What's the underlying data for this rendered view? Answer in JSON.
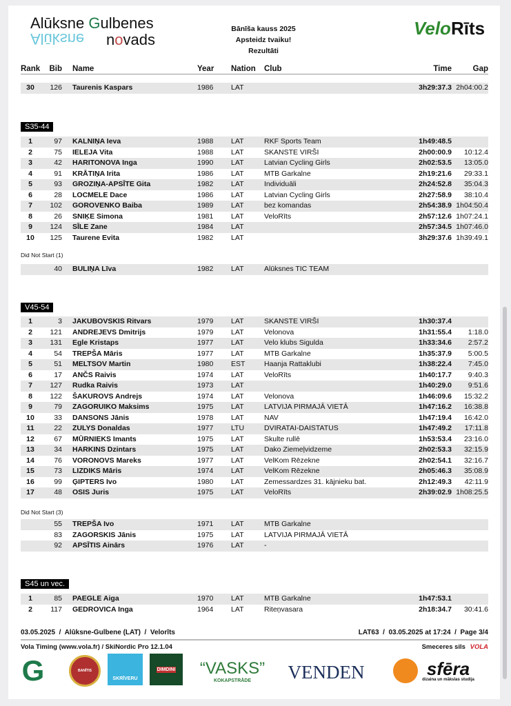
{
  "header": {
    "logo_left": "Alūksne Gulbenes novads",
    "logo_right": "VeloRīts",
    "title_lines": [
      "Bānīša kauss 2025",
      "Apsteidz tvaiku!",
      "Rezultāti"
    ]
  },
  "columns": {
    "rank": "Rank",
    "bib": "Bib",
    "name": "Name",
    "year": "Year",
    "nation": "Nation",
    "club": "Club",
    "time": "Time",
    "gap": "Gap"
  },
  "carryover": [
    {
      "rank": "30",
      "bib": "126",
      "name": "Taurenis Kaspars",
      "year": "1986",
      "nation": "LAT",
      "club": "",
      "time": "3h29:37.3",
      "gap": "2h04:00.2"
    }
  ],
  "categories": [
    {
      "label": "S35-44",
      "rows": [
        {
          "rank": "1",
          "bib": "97",
          "name": "KALNIŅA Ieva",
          "year": "1988",
          "nation": "LAT",
          "club": "RKF Sports Team",
          "time": "1h49:48.5",
          "gap": ""
        },
        {
          "rank": "2",
          "bib": "75",
          "name": "IELEJA Vita",
          "year": "1988",
          "nation": "LAT",
          "club": "SKANSTE VIRŠI",
          "time": "2h00:00.9",
          "gap": "10:12.4"
        },
        {
          "rank": "3",
          "bib": "42",
          "name": "HARITONOVA Inga",
          "year": "1990",
          "nation": "LAT",
          "club": "Latvian Cycling Girls",
          "time": "2h02:53.5",
          "gap": "13:05.0"
        },
        {
          "rank": "4",
          "bib": "91",
          "name": "KRĀTIŅA Irita",
          "year": "1986",
          "nation": "LAT",
          "club": "MTB Garkalne",
          "time": "2h19:21.6",
          "gap": "29:33.1"
        },
        {
          "rank": "5",
          "bib": "93",
          "name": "GROZIŅA-APSĪTE Gita",
          "year": "1982",
          "nation": "LAT",
          "club": "Individuāli",
          "time": "2h24:52.8",
          "gap": "35:04.3"
        },
        {
          "rank": "6",
          "bib": "28",
          "name": "LOCMELE Dace",
          "year": "1986",
          "nation": "LAT",
          "club": "Latvian Cycling Girls",
          "time": "2h27:58.9",
          "gap": "38:10.4"
        },
        {
          "rank": "7",
          "bib": "102",
          "name": "GOROVENKO Baiba",
          "year": "1989",
          "nation": "LAT",
          "club": "bez komandas",
          "time": "2h54:38.9",
          "gap": "1h04:50.4"
        },
        {
          "rank": "8",
          "bib": "26",
          "name": "SNIĶE Simona",
          "year": "1981",
          "nation": "LAT",
          "club": "VeloRīts",
          "time": "2h57:12.6",
          "gap": "1h07:24.1"
        },
        {
          "rank": "9",
          "bib": "124",
          "name": "SĪLE Zane",
          "year": "1984",
          "nation": "LAT",
          "club": "",
          "time": "2h57:34.5",
          "gap": "1h07:46.0"
        },
        {
          "rank": "10",
          "bib": "125",
          "name": "Taurene Evita",
          "year": "1982",
          "nation": "LAT",
          "club": "",
          "time": "3h29:37.6",
          "gap": "1h39:49.1"
        }
      ],
      "dns_label": "Did Not Start (1)",
      "dns": [
        {
          "bib": "40",
          "name": "BULIŅA Līva",
          "year": "1982",
          "nation": "LAT",
          "club": "Alūksnes TIC TEAM"
        }
      ]
    },
    {
      "label": "V45-54",
      "rows": [
        {
          "rank": "1",
          "bib": "3",
          "name": "JAKUBOVSKIS Ritvars",
          "year": "1979",
          "nation": "LAT",
          "club": "SKANSTE VIRŠI",
          "time": "1h30:37.4",
          "gap": ""
        },
        {
          "rank": "2",
          "bib": "121",
          "name": "ANDREJEVS Dmitrijs",
          "year": "1979",
          "nation": "LAT",
          "club": "Velonova",
          "time": "1h31:55.4",
          "gap": "1:18.0"
        },
        {
          "rank": "3",
          "bib": "131",
          "name": "Egle Kristaps",
          "year": "1977",
          "nation": "LAT",
          "club": "Velo klubs Sigulda",
          "time": "1h33:34.6",
          "gap": "2:57.2"
        },
        {
          "rank": "4",
          "bib": "54",
          "name": "TREPŠA Māris",
          "year": "1977",
          "nation": "LAT",
          "club": "MTB Garkalne",
          "time": "1h35:37.9",
          "gap": "5:00.5"
        },
        {
          "rank": "5",
          "bib": "51",
          "name": "MELTSOV Martin",
          "year": "1980",
          "nation": "EST",
          "club": "Haanja Rattaklubi",
          "time": "1h38:22.4",
          "gap": "7:45.0"
        },
        {
          "rank": "6",
          "bib": "17",
          "name": "ANČS Raivis",
          "year": "1974",
          "nation": "LAT",
          "club": "VeloRīts",
          "time": "1h40:17.7",
          "gap": "9:40.3"
        },
        {
          "rank": "7",
          "bib": "127",
          "name": "Rudka Raivis",
          "year": "1973",
          "nation": "LAT",
          "club": "",
          "time": "1h40:29.0",
          "gap": "9:51.6"
        },
        {
          "rank": "8",
          "bib": "122",
          "name": "ŠAKUROVS Andrejs",
          "year": "1974",
          "nation": "LAT",
          "club": "Velonova",
          "time": "1h46:09.6",
          "gap": "15:32.2"
        },
        {
          "rank": "9",
          "bib": "79",
          "name": "ZAGORUIKO Maksims",
          "year": "1975",
          "nation": "LAT",
          "club": "LATVIJA PIRMAJĀ VIETĀ",
          "time": "1h47:16.2",
          "gap": "16:38.8"
        },
        {
          "rank": "10",
          "bib": "33",
          "name": "DANSONS Jānis",
          "year": "1978",
          "nation": "LAT",
          "club": "NAV",
          "time": "1h47:19.4",
          "gap": "16:42.0"
        },
        {
          "rank": "11",
          "bib": "22",
          "name": "ZULYS Donaldas",
          "year": "1977",
          "nation": "LTU",
          "club": "DVIRATAI-DAISTATUS",
          "time": "1h47:49.2",
          "gap": "17:11.8"
        },
        {
          "rank": "12",
          "bib": "67",
          "name": "MŪRNIEKS Imants",
          "year": "1975",
          "nation": "LAT",
          "club": "Skulte rullē",
          "time": "1h53:53.4",
          "gap": "23:16.0"
        },
        {
          "rank": "13",
          "bib": "34",
          "name": "HARKINS Dzintars",
          "year": "1975",
          "nation": "LAT",
          "club": "Dako Ziemeļvidzeme",
          "time": "2h02:53.3",
          "gap": "32:15.9"
        },
        {
          "rank": "14",
          "bib": "76",
          "name": "VORONOVS Mareks",
          "year": "1977",
          "nation": "LAT",
          "club": "VelKom Rēzekne",
          "time": "2h02:54.1",
          "gap": "32:16.7"
        },
        {
          "rank": "15",
          "bib": "73",
          "name": "LIZDIKS Māris",
          "year": "1974",
          "nation": "LAT",
          "club": "VelKom Rēzekne",
          "time": "2h05:46.3",
          "gap": "35:08.9"
        },
        {
          "rank": "16",
          "bib": "99",
          "name": "ĢIPTERS Ivo",
          "year": "1980",
          "nation": "LAT",
          "club": "Zemessardzes 31. kājnieku bat.",
          "time": "2h12:49.3",
          "gap": "42:11.9"
        },
        {
          "rank": "17",
          "bib": "48",
          "name": "OSIS Juris",
          "year": "1975",
          "nation": "LAT",
          "club": "VeloRīts",
          "time": "2h39:02.9",
          "gap": "1h08:25.5"
        }
      ],
      "dns_label": "Did Not Start (3)",
      "dns": [
        {
          "bib": "55",
          "name": "TREPŠA Ivo",
          "year": "1971",
          "nation": "LAT",
          "club": "MTB Garkalne"
        },
        {
          "bib": "83",
          "name": "ZAGORSKIS Jānis",
          "year": "1975",
          "nation": "LAT",
          "club": "LATVIJA PIRMAJĀ VIETĀ"
        },
        {
          "bib": "92",
          "name": "APSĪTIS Ainārs",
          "year": "1976",
          "nation": "LAT",
          "club": "-"
        }
      ]
    },
    {
      "label": "S45 un vec.",
      "rows": [
        {
          "rank": "1",
          "bib": "85",
          "name": "PAEGLE Aiga",
          "year": "1970",
          "nation": "LAT",
          "club": "MTB Garkalne",
          "time": "1h47:53.1",
          "gap": ""
        },
        {
          "rank": "2",
          "bib": "117",
          "name": "GEDROVICA Inga",
          "year": "1964",
          "nation": "LAT",
          "club": "Riteņvasara",
          "time": "2h18:34.7",
          "gap": "30:41.6"
        }
      ]
    }
  ],
  "footer": {
    "left": "03.05.2025  /  Alūksne-Gulbene (LAT)  /  Velorīts",
    "right": "LAT63  /  03.05.2025 at 17:24  /  Page 3/4",
    "software": "Vola Timing (www.vola.fr) / SkiNordic Pro 12.1.04",
    "sponsor_text": "Smeceres sils",
    "vola_logo": "VOLA"
  },
  "sponsors": [
    "G",
    "BANĪTIS",
    "SKRĪVERU",
    "DIMDINI",
    "“VASKS”",
    "KOKAPSTRĀDE",
    "VENDEN",
    "sfēra",
    "dizaina un mākslas studija"
  ],
  "colors": {
    "row_stripe": "#e6e6e6",
    "category_bg": "#000000",
    "gulbene_green": "#1e7a4a",
    "alu_blue": "#5bc2d8",
    "vola_red": "#d0202a"
  }
}
